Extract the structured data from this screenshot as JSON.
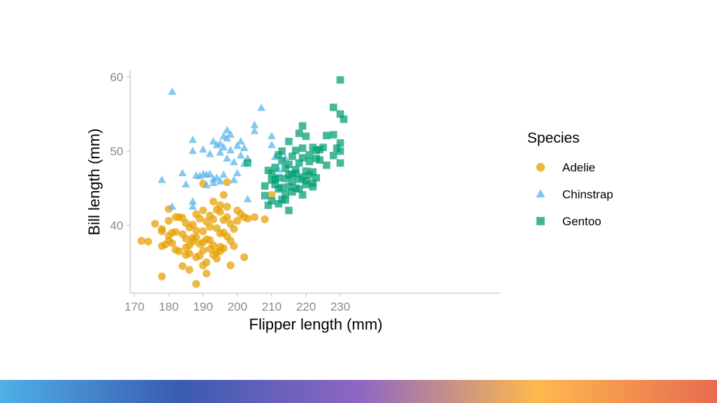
{
  "colors": {
    "adelie": "#E69F00",
    "chinstrap": "#56B4E9",
    "gentoo": "#009E73",
    "axis_line": "#dcdcdc",
    "footer_gradient": [
      "#4fb0e6",
      "#3a5bb0",
      "#8e66c3",
      "#fdb94e",
      "#e86b52"
    ]
  },
  "chart_data": {
    "type": "scatter",
    "xlabel": "Flipper length (mm)",
    "ylabel": "Bill length (mm)",
    "xlim": [
      169,
      232
    ],
    "ylim": [
      31,
      61
    ],
    "xticks": [
      170,
      180,
      190,
      200,
      210,
      220,
      230
    ],
    "yticks": [
      40,
      50,
      60
    ],
    "grid": false,
    "legend": {
      "title": "Species",
      "position": "right"
    },
    "series": [
      {
        "name": "Adelie",
        "marker": "circle",
        "points": [
          [
            172,
            37.9
          ],
          [
            174,
            37.8
          ],
          [
            176,
            40.2
          ],
          [
            178,
            33.1
          ],
          [
            178,
            37.2
          ],
          [
            178,
            39.5
          ],
          [
            179,
            37.4
          ],
          [
            180,
            38.6
          ],
          [
            180,
            40.6
          ],
          [
            180,
            42.2
          ],
          [
            180,
            37.9
          ],
          [
            181,
            39.0
          ],
          [
            181,
            37.6
          ],
          [
            182,
            36.7
          ],
          [
            182,
            39.1
          ],
          [
            183,
            41.1
          ],
          [
            183,
            36.5
          ],
          [
            184,
            38.8
          ],
          [
            184,
            41.0
          ],
          [
            184,
            34.5
          ],
          [
            185,
            36.0
          ],
          [
            185,
            38.2
          ],
          [
            185,
            40.3
          ],
          [
            185,
            37.0
          ],
          [
            186,
            39.7
          ],
          [
            186,
            36.2
          ],
          [
            186,
            34.0
          ],
          [
            187,
            38.3
          ],
          [
            187,
            40.1
          ],
          [
            187,
            37.8
          ],
          [
            188,
            39.3
          ],
          [
            188,
            41.5
          ],
          [
            188,
            35.7
          ],
          [
            189,
            37.5
          ],
          [
            189,
            40.9
          ],
          [
            189,
            35.9
          ],
          [
            190,
            36.6
          ],
          [
            190,
            39.2
          ],
          [
            190,
            42.0
          ],
          [
            190,
            34.6
          ],
          [
            190,
            37.7
          ],
          [
            191,
            38.1
          ],
          [
            191,
            40.5
          ],
          [
            191,
            35.0
          ],
          [
            192,
            36.8
          ],
          [
            192,
            39.8
          ],
          [
            192,
            41.3
          ],
          [
            192,
            38.0
          ],
          [
            193,
            37.3
          ],
          [
            193,
            40.8
          ],
          [
            193,
            43.2
          ],
          [
            194,
            36.4
          ],
          [
            194,
            39.6
          ],
          [
            194,
            35.5
          ],
          [
            195,
            38.9
          ],
          [
            195,
            41.8
          ],
          [
            195,
            37.1
          ],
          [
            195,
            42.7
          ],
          [
            196,
            39.0
          ],
          [
            196,
            36.9
          ],
          [
            196,
            40.7
          ],
          [
            196,
            44.1
          ],
          [
            197,
            38.5
          ],
          [
            197,
            41.1
          ],
          [
            197,
            42.5
          ],
          [
            198,
            37.9
          ],
          [
            198,
            40.2
          ],
          [
            198,
            34.6
          ],
          [
            199,
            39.5
          ],
          [
            199,
            37.2
          ],
          [
            200,
            40.6
          ],
          [
            200,
            42.0
          ],
          [
            201,
            41.5
          ],
          [
            202,
            35.7
          ],
          [
            202,
            41.1
          ],
          [
            203,
            40.9
          ],
          [
            205,
            41.1
          ],
          [
            208,
            40.8
          ],
          [
            210,
            44.1
          ],
          [
            178,
            39.2
          ],
          [
            186,
            37.3
          ],
          [
            188,
            38.4
          ],
          [
            191,
            33.5
          ],
          [
            193,
            36.0
          ],
          [
            195,
            36.5
          ],
          [
            194,
            42.1
          ],
          [
            197,
            45.8
          ],
          [
            190,
            45.6
          ],
          [
            188,
            32.1
          ],
          [
            182,
            41.1
          ]
        ]
      },
      {
        "name": "Chinstrap",
        "marker": "triangle",
        "points": [
          [
            178,
            46.1
          ],
          [
            181,
            42.5
          ],
          [
            181,
            58.0
          ],
          [
            187,
            42.5
          ],
          [
            187,
            43.2
          ],
          [
            187,
            51.5
          ],
          [
            187,
            50.0
          ],
          [
            188,
            46.7
          ],
          [
            189,
            46.6
          ],
          [
            190,
            46.9
          ],
          [
            190,
            50.2
          ],
          [
            191,
            46.8
          ],
          [
            191,
            45.4
          ],
          [
            192,
            46.9
          ],
          [
            192,
            49.6
          ],
          [
            193,
            51.3
          ],
          [
            193,
            46.2
          ],
          [
            194,
            50.8
          ],
          [
            194,
            46.4
          ],
          [
            195,
            49.8
          ],
          [
            195,
            45.9
          ],
          [
            196,
            50.5
          ],
          [
            196,
            52.0
          ],
          [
            197,
            51.7
          ],
          [
            197,
            49.0
          ],
          [
            198,
            50.1
          ],
          [
            198,
            52.2
          ],
          [
            199,
            48.5
          ],
          [
            200,
            50.7
          ],
          [
            201,
            51.3
          ],
          [
            201,
            49.4
          ],
          [
            202,
            50.4
          ],
          [
            202,
            48.3
          ],
          [
            205,
            53.5
          ],
          [
            205,
            52.7
          ],
          [
            207,
            55.8
          ],
          [
            210,
            52.0
          ],
          [
            210,
            50.8
          ],
          [
            211,
            49.2
          ],
          [
            212,
            47.5
          ],
          [
            184,
            47.0
          ],
          [
            196,
            46.8
          ],
          [
            200,
            47.0
          ],
          [
            203,
            49.0
          ],
          [
            197,
            52.8
          ],
          [
            199,
            46.1
          ],
          [
            193,
            45.7
          ],
          [
            195,
            51.0
          ],
          [
            203,
            43.5
          ],
          [
            185,
            45.5
          ],
          [
            214,
            49.0
          ]
        ]
      },
      {
        "name": "Gentoo",
        "marker": "square",
        "points": [
          [
            203,
            48.4
          ],
          [
            208,
            45.3
          ],
          [
            208,
            44.0
          ],
          [
            209,
            42.7
          ],
          [
            210,
            46.1
          ],
          [
            210,
            47.0
          ],
          [
            210,
            43.3
          ],
          [
            211,
            45.5
          ],
          [
            211,
            47.8
          ],
          [
            212,
            44.9
          ],
          [
            212,
            46.4
          ],
          [
            212,
            42.9
          ],
          [
            213,
            48.7
          ],
          [
            213,
            45.1
          ],
          [
            213,
            50.0
          ],
          [
            214,
            46.3
          ],
          [
            214,
            43.4
          ],
          [
            214,
            47.7
          ],
          [
            215,
            45.2
          ],
          [
            215,
            48.2
          ],
          [
            215,
            46.8
          ],
          [
            215,
            42.0
          ],
          [
            216,
            44.5
          ],
          [
            216,
            49.3
          ],
          [
            216,
            46.9
          ],
          [
            217,
            45.0
          ],
          [
            217,
            47.5
          ],
          [
            217,
            50.1
          ],
          [
            218,
            46.2
          ],
          [
            218,
            44.9
          ],
          [
            218,
            48.4
          ],
          [
            219,
            46.5
          ],
          [
            219,
            49.1
          ],
          [
            219,
            50.4
          ],
          [
            220,
            45.5
          ],
          [
            220,
            47.3
          ],
          [
            220,
            52.0
          ],
          [
            221,
            46.8
          ],
          [
            221,
            48.6
          ],
          [
            221,
            49.5
          ],
          [
            222,
            45.7
          ],
          [
            222,
            47.2
          ],
          [
            222,
            50.5
          ],
          [
            223,
            49.0
          ],
          [
            223,
            46.4
          ],
          [
            224,
            50.2
          ],
          [
            224,
            48.8
          ],
          [
            225,
            50.5
          ],
          [
            226,
            52.1
          ],
          [
            228,
            52.2
          ],
          [
            228,
            49.4
          ],
          [
            229,
            50.4
          ],
          [
            230,
            50.0
          ],
          [
            230,
            48.4
          ],
          [
            230,
            51.1
          ],
          [
            230,
            55.0
          ],
          [
            230,
            59.6
          ],
          [
            231,
            54.3
          ],
          [
            212,
            49.5
          ],
          [
            214,
            44.2
          ],
          [
            216,
            45.9
          ],
          [
            218,
            52.4
          ],
          [
            219,
            53.4
          ],
          [
            222,
            45.2
          ],
          [
            219,
            44.1
          ],
          [
            209,
            47.4
          ],
          [
            213,
            43.5
          ],
          [
            215,
            51.3
          ],
          [
            217,
            47.0
          ],
          [
            211,
            46.2
          ],
          [
            223,
            50.1
          ],
          [
            228,
            55.9
          ],
          [
            226,
            48.1
          ],
          [
            220,
            46.0
          ]
        ]
      }
    ]
  }
}
